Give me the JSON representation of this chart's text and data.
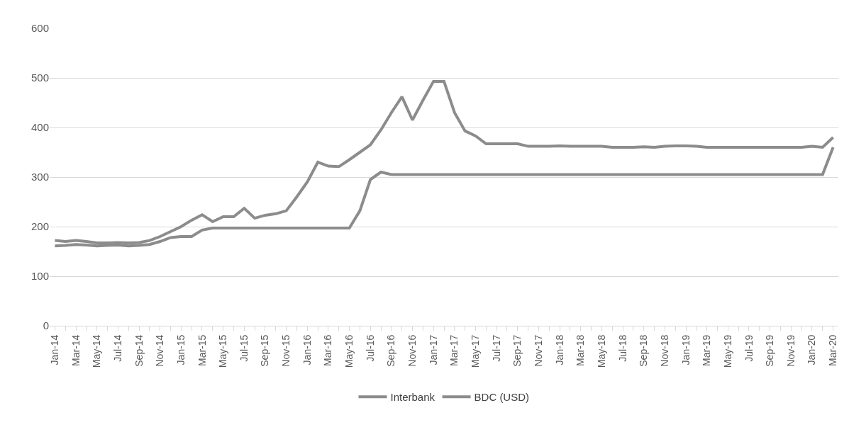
{
  "chart_data": {
    "type": "line",
    "categories": [
      "Jan-14",
      null,
      "Mar-14",
      null,
      "May-14",
      null,
      "Jul-14",
      null,
      "Sep-14",
      null,
      "Nov-14",
      null,
      "Jan-15",
      null,
      "Mar-15",
      null,
      "May-15",
      null,
      "Jul-15",
      null,
      "Sep-15",
      null,
      "Nov-15",
      null,
      "Jan-16",
      null,
      "Mar-16",
      null,
      "May-16",
      null,
      "Jul-16",
      null,
      "Sep-16",
      null,
      "Nov-16",
      null,
      "Jan-17",
      null,
      "Mar-17",
      null,
      "May-17",
      null,
      "Jul-17",
      null,
      "Sep-17",
      null,
      "Nov-17",
      null,
      "Jan-18",
      null,
      "Mar-18",
      null,
      "May-18",
      null,
      "Jul-18",
      null,
      "Sep-18",
      null,
      "Nov-18",
      null,
      "Jan-19",
      null,
      "Mar-19",
      null,
      "May-19",
      null,
      "Jul-19",
      null,
      "Sep-19",
      null,
      "Nov-19",
      null,
      "Jan-20",
      null,
      "Mar-20"
    ],
    "series": [
      {
        "name": "Interbank",
        "color": "#8c8c8c",
        "values": [
          161,
          162,
          164,
          163,
          161,
          162,
          163,
          161,
          162,
          164,
          170,
          178,
          180,
          180,
          193,
          197,
          197,
          197,
          197,
          197,
          197,
          197,
          197,
          197,
          197,
          197,
          197,
          197,
          197,
          232,
          295,
          310,
          305,
          305,
          305,
          305,
          305,
          305,
          305,
          305,
          305,
          305,
          305,
          305,
          305,
          305,
          305,
          305,
          305,
          305,
          305,
          305,
          305,
          305,
          305,
          305,
          305,
          305,
          305,
          305,
          305,
          305,
          305,
          305,
          305,
          305,
          305,
          305,
          305,
          305,
          305,
          305,
          305,
          305,
          360
        ]
      },
      {
        "name": "BDC (USD)",
        "color": "#8c8c8c",
        "values": [
          172,
          170,
          172,
          170,
          167,
          167,
          168,
          167,
          168,
          172,
          180,
          190,
          200,
          213,
          224,
          210,
          220,
          220,
          237,
          217,
          223,
          226,
          232,
          260,
          290,
          330,
          322,
          321,
          335,
          350,
          365,
          395,
          430,
          462,
          415,
          455,
          493,
          493,
          430,
          393,
          383,
          367,
          367,
          367,
          367,
          362,
          362,
          362,
          363,
          362,
          362,
          362,
          362,
          360,
          360,
          360,
          361,
          360,
          362,
          363,
          363,
          362,
          360,
          360,
          360,
          360,
          360,
          360,
          360,
          360,
          360,
          360,
          362,
          360,
          380
        ]
      }
    ],
    "ylim": [
      0,
      600
    ],
    "yticks": [
      0,
      100,
      200,
      300,
      400,
      500,
      600
    ],
    "grid": "y",
    "legend": "bottom",
    "line_style": "solid"
  }
}
